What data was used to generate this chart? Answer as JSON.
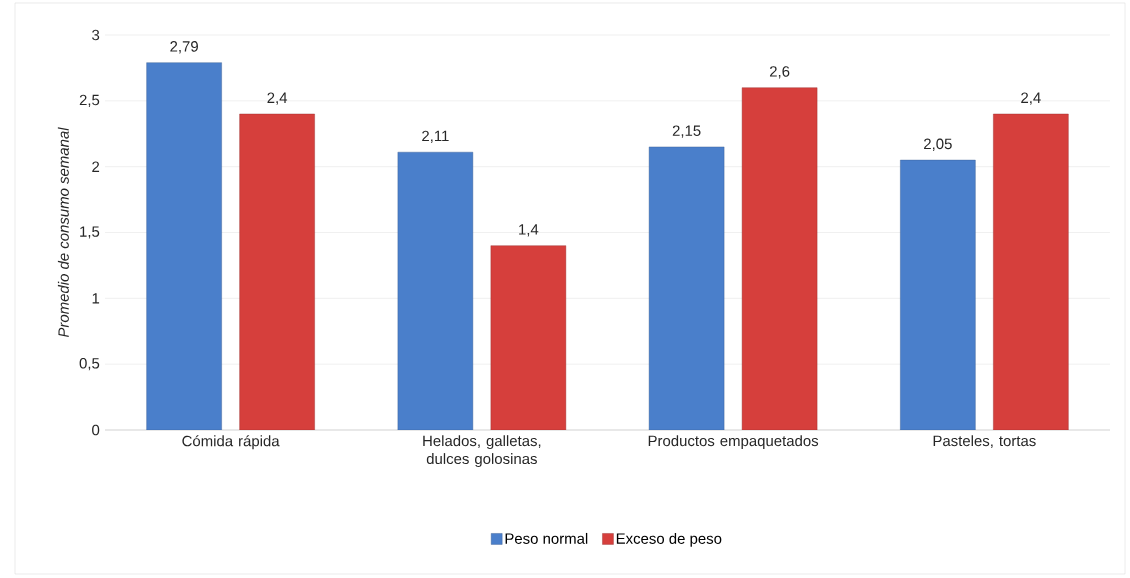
{
  "chart_data": {
    "type": "bar",
    "ylabel": "Promedio de consumo semanal",
    "categories": [
      "Cómida rápida",
      "Helados, galletas, dulces golosinas",
      "Productos empaquetados",
      "Pasteles, tortas"
    ],
    "series": [
      {
        "name": "Peso normal",
        "color": "#4a7fcb",
        "values": [
          2.79,
          2.11,
          2.15,
          2.05
        ],
        "value_labels": [
          "2,79",
          "2,11",
          "2,15",
          "2,05"
        ]
      },
      {
        "name": "Exceso de peso",
        "color": "#d63f3c",
        "values": [
          2.4,
          1.4,
          2.6,
          2.4
        ],
        "value_labels": [
          "2,4",
          "1,4",
          "2,6",
          "2,4"
        ]
      }
    ],
    "ylim": [
      0,
      3
    ],
    "yticks": [
      0,
      {
        "value": 0.5,
        "label": "0,5"
      },
      1,
      {
        "value": 1.5,
        "label": "1,5"
      },
      2,
      {
        "value": 2.5,
        "label": "2,5"
      },
      3
    ],
    "grid": "y",
    "legend": "bottom"
  }
}
